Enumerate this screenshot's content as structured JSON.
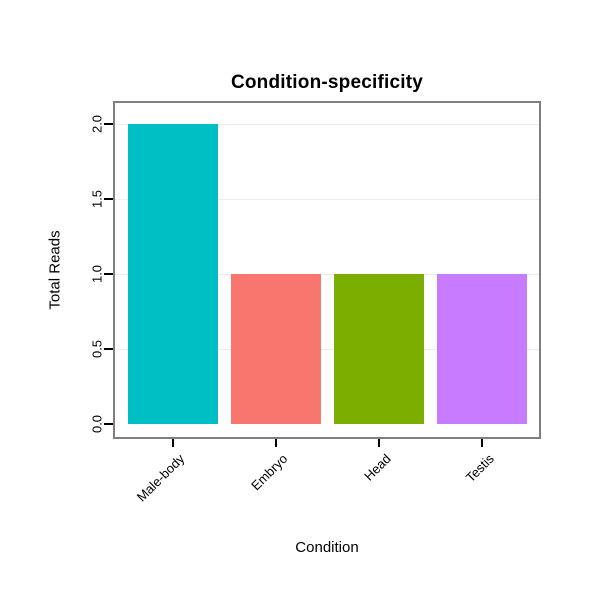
{
  "chart_data": {
    "type": "bar",
    "title": "Condition-specificity",
    "xlabel": "Condition",
    "ylabel": "Total Reads",
    "categories": [
      "Male-body",
      "Embryo",
      "Head",
      "Testis"
    ],
    "values": [
      2,
      1,
      1,
      1
    ],
    "colors": [
      "#00BFC4",
      "#F8766D",
      "#7CAE00",
      "#C77CFF"
    ],
    "ylim": [
      0,
      2
    ],
    "yticks": [
      {
        "value": 0,
        "label": "0.0"
      },
      {
        "value": 0.5,
        "label": "0.5"
      },
      {
        "value": 1,
        "label": "1.0"
      },
      {
        "value": 1.5,
        "label": "1.5"
      },
      {
        "value": 2,
        "label": "2.0"
      }
    ],
    "grid": true,
    "gridline_color": "#ededed",
    "panel_border_color": "#7f7f7f",
    "legend": "none",
    "background": "#ffffff"
  }
}
